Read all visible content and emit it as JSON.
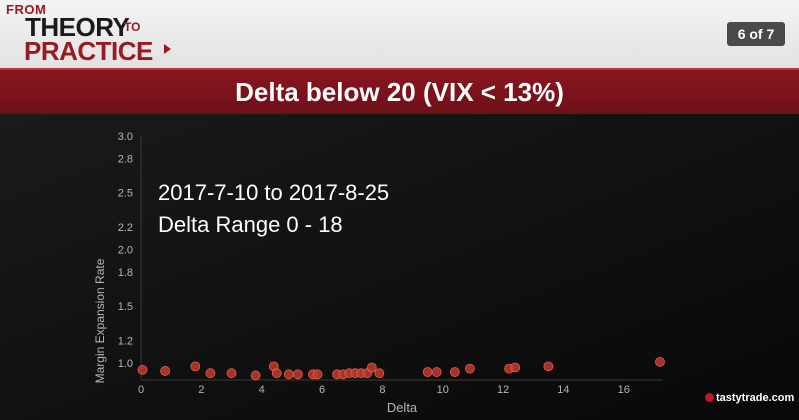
{
  "header": {
    "logo_from": "FROM",
    "logo_theory": "THEORY",
    "logo_to": "TO",
    "logo_practice": "PRACTICE",
    "page_indicator": "6 of 7"
  },
  "title": "Delta below 20 (VIX < 13%)",
  "overlay": {
    "line1": "2017-7-10 to 2017-8-25",
    "line2": "Delta Range 0 - 18"
  },
  "brand": "tastytrade.com",
  "colors": {
    "point": "#c0392b",
    "title_bar": "#7a121c",
    "background": "#0c0c0c"
  },
  "chart_data": {
    "type": "scatter",
    "xlabel": "Delta",
    "ylabel": "Margin Expansion Rate",
    "xlim": [
      0,
      17.3
    ],
    "ylim": [
      0.85,
      3.0
    ],
    "xticks": [
      0,
      2,
      4,
      6,
      8,
      10,
      12,
      14,
      16
    ],
    "yticks": [
      1.0,
      1.2,
      1.5,
      1.8,
      2.0,
      2.2,
      2.5,
      2.8,
      3.0
    ],
    "grid": false,
    "points": [
      {
        "x": 0.05,
        "y": 0.94
      },
      {
        "x": 0.8,
        "y": 0.93
      },
      {
        "x": 1.8,
        "y": 0.97
      },
      {
        "x": 2.3,
        "y": 0.91
      },
      {
        "x": 3.0,
        "y": 0.91
      },
      {
        "x": 3.8,
        "y": 0.89
      },
      {
        "x": 4.4,
        "y": 0.97
      },
      {
        "x": 4.5,
        "y": 0.91
      },
      {
        "x": 4.9,
        "y": 0.9
      },
      {
        "x": 5.2,
        "y": 0.9
      },
      {
        "x": 5.7,
        "y": 0.9
      },
      {
        "x": 5.85,
        "y": 0.9
      },
      {
        "x": 6.5,
        "y": 0.9
      },
      {
        "x": 6.7,
        "y": 0.9
      },
      {
        "x": 6.9,
        "y": 0.91
      },
      {
        "x": 7.1,
        "y": 0.91
      },
      {
        "x": 7.3,
        "y": 0.91
      },
      {
        "x": 7.5,
        "y": 0.91
      },
      {
        "x": 7.65,
        "y": 0.96
      },
      {
        "x": 7.9,
        "y": 0.91
      },
      {
        "x": 9.5,
        "y": 0.92
      },
      {
        "x": 9.8,
        "y": 0.92
      },
      {
        "x": 10.4,
        "y": 0.92
      },
      {
        "x": 10.9,
        "y": 0.95
      },
      {
        "x": 12.2,
        "y": 0.95
      },
      {
        "x": 12.4,
        "y": 0.96
      },
      {
        "x": 13.5,
        "y": 0.97
      },
      {
        "x": 17.2,
        "y": 1.01
      }
    ]
  }
}
